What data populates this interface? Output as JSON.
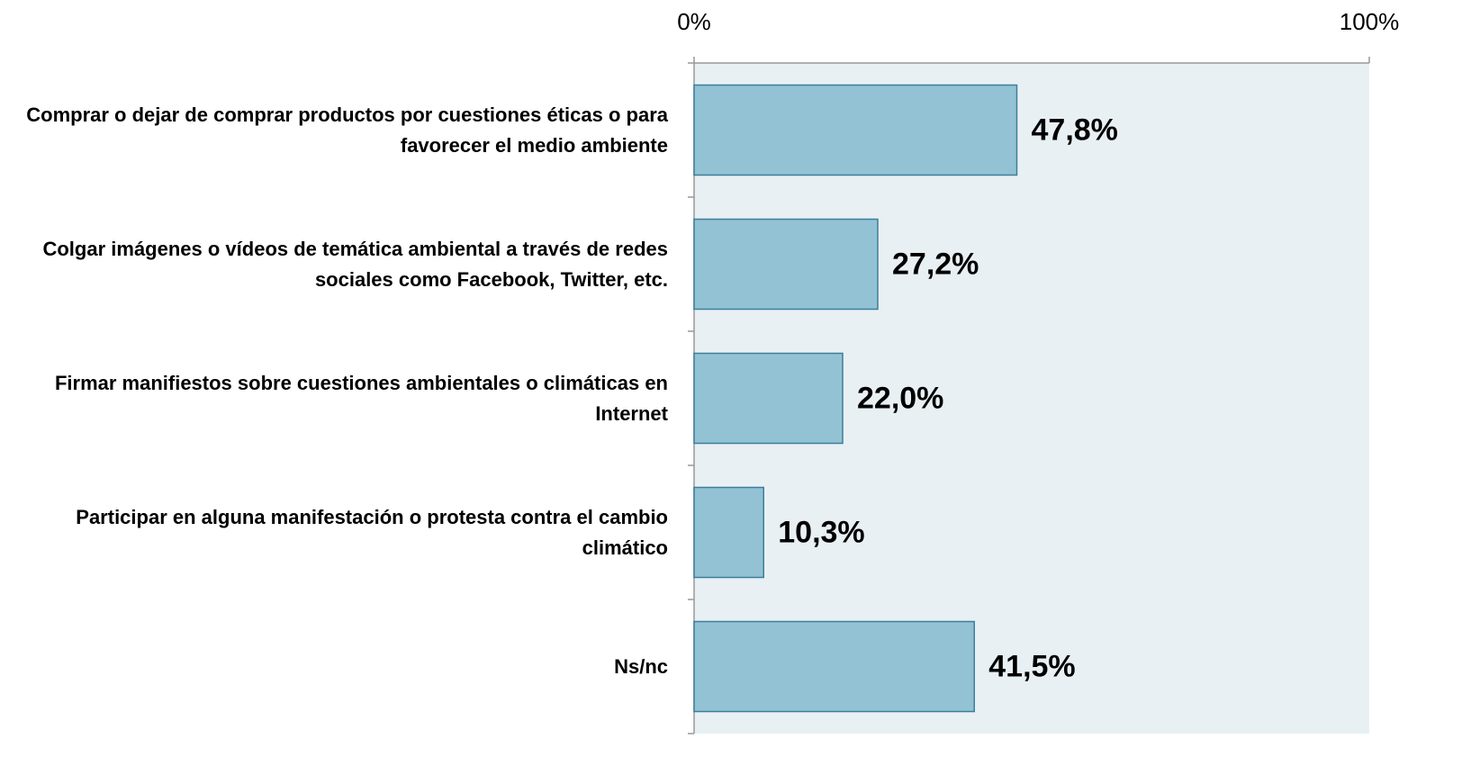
{
  "chart_data": {
    "type": "hbar",
    "categories": [
      "Comprar o dejar de comprar productos por cuestiones éticas o para favorecer el medio ambiente",
      "Colgar imágenes o vídeos de temática ambiental a través de redes sociales como Facebook, Twitter, etc.",
      "Firmar manifiestos sobre cuestiones ambientales o climáticas en Internet",
      "Participar en alguna manifestación o protesta contra el cambio climático",
      "Ns/nc"
    ],
    "values": [
      47.8,
      27.2,
      22.0,
      10.3,
      41.5
    ],
    "value_labels": [
      "47,8%",
      "27,2%",
      "22,0%",
      "10,3%",
      "41,5%"
    ],
    "color": "#93c2d4",
    "xlim": [
      0,
      100
    ],
    "xticks": [
      {
        "value": 0,
        "label": "0%"
      },
      {
        "value": 100,
        "label": "100%"
      }
    ]
  }
}
